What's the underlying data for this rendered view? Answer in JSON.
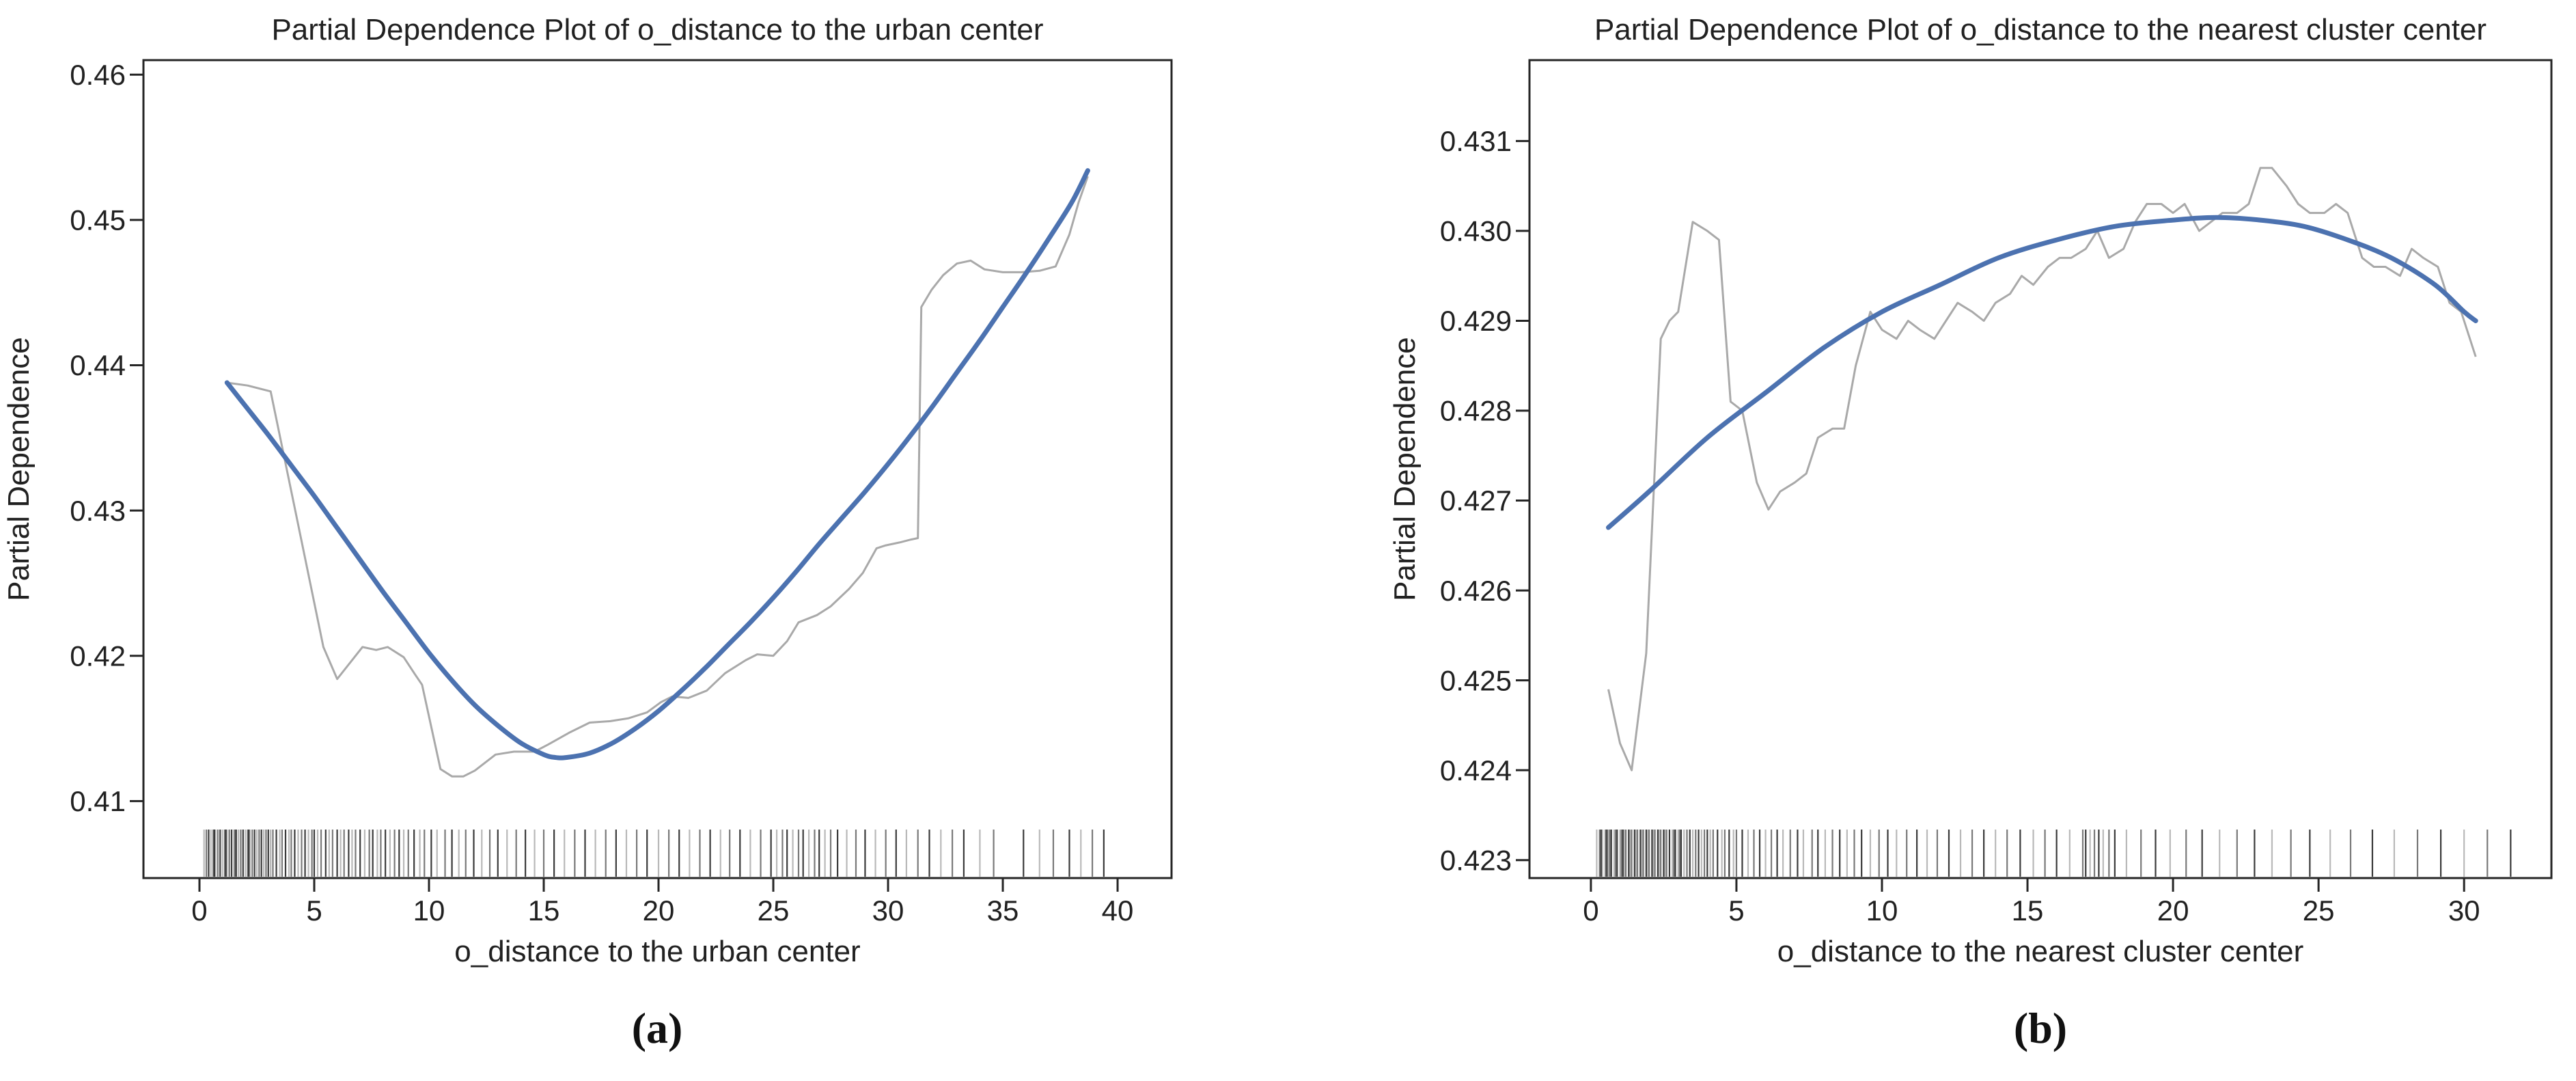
{
  "figure": {
    "background": "#ffffff",
    "captions": [
      "(a)",
      "(b)"
    ]
  },
  "colors": {
    "smooth_line": "#4c72b0",
    "raw_line": "#a9a9a9",
    "axis": "#262626",
    "text": "#212121",
    "rug": "#1a1a1a"
  },
  "chart_data": [
    {
      "type": "line",
      "title": "Partial Dependence Plot of o_distance to the urban center",
      "xlabel": "o_distance to the urban center",
      "ylabel": "Partial Dependence",
      "caption": "(a)",
      "grid": false,
      "legend_position": "none",
      "xlim": [
        -2.44,
        42.35
      ],
      "ylim": [
        0.4047,
        0.461
      ],
      "xticks": [
        0,
        5,
        10,
        15,
        20,
        25,
        30,
        35,
        40
      ],
      "xtick_labels": [
        "0",
        "5",
        "10",
        "15",
        "20",
        "25",
        "30",
        "35",
        "40"
      ],
      "yticks": [
        0.41,
        0.42,
        0.43,
        0.44,
        0.45,
        0.46
      ],
      "ytick_labels": [
        "0.41",
        "0.42",
        "0.43",
        "0.44",
        "0.45",
        "0.46"
      ],
      "series": [
        {
          "name": "partial-dependence-raw",
          "style": "jagged",
          "color": "#a9a9a9",
          "width": 3,
          "points": [
            [
              1.2,
              0.4388
            ],
            [
              2.1,
              0.4386
            ],
            [
              3.1,
              0.4382
            ],
            [
              4.2,
              0.4298
            ],
            [
              5.4,
              0.4206
            ],
            [
              6.0,
              0.4184
            ],
            [
              6.6,
              0.4196
            ],
            [
              7.1,
              0.4206
            ],
            [
              7.7,
              0.4204
            ],
            [
              8.2,
              0.4206
            ],
            [
              8.9,
              0.4199
            ],
            [
              9.4,
              0.4187
            ],
            [
              9.7,
              0.418
            ],
            [
              10.5,
              0.4122
            ],
            [
              11.0,
              0.4117
            ],
            [
              11.5,
              0.4117
            ],
            [
              12.0,
              0.4121
            ],
            [
              12.9,
              0.4132
            ],
            [
              13.7,
              0.4134
            ],
            [
              14.6,
              0.4134
            ],
            [
              15.2,
              0.4139
            ],
            [
              16.1,
              0.4147
            ],
            [
              17.0,
              0.4154
            ],
            [
              17.9,
              0.4155
            ],
            [
              18.7,
              0.4157
            ],
            [
              19.5,
              0.4161
            ],
            [
              20.1,
              0.4168
            ],
            [
              20.6,
              0.4172
            ],
            [
              21.3,
              0.4171
            ],
            [
              22.1,
              0.4176
            ],
            [
              22.9,
              0.4188
            ],
            [
              23.8,
              0.4197
            ],
            [
              24.3,
              0.4201
            ],
            [
              25.0,
              0.42
            ],
            [
              25.6,
              0.421
            ],
            [
              26.1,
              0.4223
            ],
            [
              26.9,
              0.4228
            ],
            [
              27.5,
              0.4234
            ],
            [
              28.3,
              0.4246
            ],
            [
              28.9,
              0.4257
            ],
            [
              29.5,
              0.4274
            ],
            [
              29.9,
              0.4276
            ],
            [
              30.5,
              0.4278
            ],
            [
              31.0,
              0.428
            ],
            [
              31.3,
              0.4281
            ],
            [
              31.45,
              0.444
            ],
            [
              31.9,
              0.4452
            ],
            [
              32.4,
              0.4462
            ],
            [
              33.0,
              0.447
            ],
            [
              33.6,
              0.4472
            ],
            [
              34.2,
              0.4466
            ],
            [
              35.0,
              0.4464
            ],
            [
              35.8,
              0.4464
            ],
            [
              36.6,
              0.4465
            ],
            [
              37.3,
              0.4468
            ],
            [
              37.9,
              0.449
            ],
            [
              38.3,
              0.4512
            ],
            [
              38.7,
              0.453
            ]
          ]
        },
        {
          "name": "partial-dependence-smoothed",
          "style": "smooth",
          "color": "#4c72b0",
          "width": 7,
          "points": [
            [
              1.2,
              0.4388
            ],
            [
              2,
              0.4372
            ],
            [
              3,
              0.4352
            ],
            [
              4,
              0.4331
            ],
            [
              5,
              0.431
            ],
            [
              6,
              0.4288
            ],
            [
              7,
              0.4266
            ],
            [
              8,
              0.4244
            ],
            [
              9,
              0.4223
            ],
            [
              10,
              0.4202
            ],
            [
              11,
              0.4183
            ],
            [
              12,
              0.4166
            ],
            [
              13,
              0.4152
            ],
            [
              14,
              0.414
            ],
            [
              15,
              0.4132
            ],
            [
              15.5,
              0.413
            ],
            [
              16,
              0.413
            ],
            [
              17,
              0.4133
            ],
            [
              18,
              0.414
            ],
            [
              19,
              0.415
            ],
            [
              20,
              0.4162
            ],
            [
              21,
              0.4176
            ],
            [
              22,
              0.4191
            ],
            [
              23,
              0.4207
            ],
            [
              24,
              0.4223
            ],
            [
              25,
              0.424
            ],
            [
              26,
              0.4258
            ],
            [
              27,
              0.4277
            ],
            [
              28,
              0.4295
            ],
            [
              29,
              0.4313
            ],
            [
              30,
              0.4332
            ],
            [
              31,
              0.4352
            ],
            [
              32,
              0.4373
            ],
            [
              33,
              0.4395
            ],
            [
              34,
              0.4417
            ],
            [
              35,
              0.444
            ],
            [
              36,
              0.4463
            ],
            [
              37,
              0.4487
            ],
            [
              38,
              0.4512
            ],
            [
              38.7,
              0.4534
            ]
          ]
        }
      ],
      "rug_x": [
        0.2,
        0.3,
        0.4,
        0.5,
        0.6,
        0.65,
        0.7,
        0.8,
        0.9,
        1.0,
        1.1,
        1.15,
        1.2,
        1.3,
        1.4,
        1.5,
        1.55,
        1.6,
        1.7,
        1.8,
        1.9,
        2.0,
        2.1,
        2.15,
        2.2,
        2.3,
        2.4,
        2.5,
        2.6,
        2.7,
        2.8,
        2.9,
        3.0,
        3.1,
        3.2,
        3.35,
        3.5,
        3.6,
        3.75,
        3.9,
        4.0,
        4.15,
        4.3,
        4.45,
        4.6,
        4.75,
        4.9,
        5.0,
        5.15,
        5.3,
        5.5,
        5.65,
        5.8,
        6.0,
        6.15,
        6.3,
        6.5,
        6.65,
        6.8,
        7.0,
        7.2,
        7.4,
        7.55,
        7.75,
        7.9,
        8.1,
        8.3,
        8.5,
        8.7,
        8.9,
        9.1,
        9.35,
        9.6,
        9.8,
        10.1,
        10.35,
        10.7,
        11.0,
        11.3,
        11.6,
        11.95,
        12.3,
        12.65,
        13.0,
        13.4,
        13.8,
        14.2,
        14.6,
        15.0,
        15.45,
        15.9,
        16.35,
        16.8,
        17.25,
        17.7,
        18.15,
        18.6,
        19.05,
        19.5,
        20.0,
        20.45,
        20.9,
        21.35,
        21.8,
        22.25,
        22.7,
        23.1,
        23.55,
        24.0,
        24.45,
        24.9,
        25.15,
        25.4,
        25.6,
        25.85,
        26.1,
        26.3,
        26.55,
        26.8,
        27.0,
        27.25,
        27.5,
        27.8,
        28.2,
        28.6,
        29.0,
        29.45,
        29.9,
        30.35,
        30.8,
        31.3,
        31.8,
        32.3,
        32.8,
        33.3,
        34.0,
        34.6,
        35.9,
        36.6,
        37.2,
        37.9,
        38.4,
        38.9,
        39.4
      ]
    },
    {
      "type": "line",
      "title": "Partial Dependence Plot of o_distance to the nearest cluster center",
      "xlabel": "o_distance to the nearest cluster center",
      "ylabel": "Partial Dependence",
      "caption": "(b)",
      "grid": false,
      "legend_position": "none",
      "xlim": [
        -2.11,
        33.0
      ],
      "ylim": [
        0.4228,
        0.4319
      ],
      "xticks": [
        0,
        5,
        10,
        15,
        20,
        25,
        30
      ],
      "xtick_labels": [
        "0",
        "5",
        "10",
        "15",
        "20",
        "25",
        "30"
      ],
      "yticks": [
        0.423,
        0.424,
        0.425,
        0.426,
        0.427,
        0.428,
        0.429,
        0.43,
        0.431
      ],
      "ytick_labels": [
        "0.423",
        "0.424",
        "0.425",
        "0.426",
        "0.427",
        "0.428",
        "0.429",
        "0.430",
        "0.431"
      ],
      "series": [
        {
          "name": "partial-dependence-raw",
          "style": "jagged",
          "color": "#a9a9a9",
          "width": 3,
          "points": [
            [
              0.6,
              0.4249
            ],
            [
              1.0,
              0.4243
            ],
            [
              1.4,
              0.424
            ],
            [
              1.9,
              0.4253
            ],
            [
              2.4,
              0.4288
            ],
            [
              2.7,
              0.429
            ],
            [
              3.0,
              0.4291
            ],
            [
              3.5,
              0.4301
            ],
            [
              4.0,
              0.43
            ],
            [
              4.4,
              0.4299
            ],
            [
              4.8,
              0.4281
            ],
            [
              5.2,
              0.428
            ],
            [
              5.7,
              0.4272
            ],
            [
              6.1,
              0.4269
            ],
            [
              6.5,
              0.4271
            ],
            [
              7.0,
              0.4272
            ],
            [
              7.4,
              0.4273
            ],
            [
              7.8,
              0.4277
            ],
            [
              8.3,
              0.4278
            ],
            [
              8.7,
              0.4278
            ],
            [
              9.1,
              0.4285
            ],
            [
              9.6,
              0.4291
            ],
            [
              10.0,
              0.4289
            ],
            [
              10.5,
              0.4288
            ],
            [
              10.9,
              0.429
            ],
            [
              11.3,
              0.4289
            ],
            [
              11.8,
              0.4288
            ],
            [
              12.2,
              0.429
            ],
            [
              12.6,
              0.4292
            ],
            [
              13.1,
              0.4291
            ],
            [
              13.5,
              0.429
            ],
            [
              13.9,
              0.4292
            ],
            [
              14.4,
              0.4293
            ],
            [
              14.8,
              0.4295
            ],
            [
              15.2,
              0.4294
            ],
            [
              15.7,
              0.4296
            ],
            [
              16.1,
              0.4297
            ],
            [
              16.5,
              0.4297
            ],
            [
              17.0,
              0.4298
            ],
            [
              17.4,
              0.43
            ],
            [
              17.8,
              0.4297
            ],
            [
              18.3,
              0.4298
            ],
            [
              18.7,
              0.4301
            ],
            [
              19.1,
              0.4303
            ],
            [
              19.6,
              0.4303
            ],
            [
              20.0,
              0.4302
            ],
            [
              20.4,
              0.4303
            ],
            [
              20.9,
              0.43
            ],
            [
              21.3,
              0.4301
            ],
            [
              21.7,
              0.4302
            ],
            [
              22.2,
              0.4302
            ],
            [
              22.6,
              0.4303
            ],
            [
              23.0,
              0.4307
            ],
            [
              23.4,
              0.4307
            ],
            [
              23.9,
              0.4305
            ],
            [
              24.3,
              0.4303
            ],
            [
              24.7,
              0.4302
            ],
            [
              25.2,
              0.4302
            ],
            [
              25.6,
              0.4303
            ],
            [
              26.0,
              0.4302
            ],
            [
              26.5,
              0.4297
            ],
            [
              26.9,
              0.4296
            ],
            [
              27.3,
              0.4296
            ],
            [
              27.8,
              0.4295
            ],
            [
              28.2,
              0.4298
            ],
            [
              28.6,
              0.4297
            ],
            [
              29.1,
              0.4296
            ],
            [
              29.5,
              0.4292
            ],
            [
              29.9,
              0.4291
            ],
            [
              30.4,
              0.4286
            ]
          ]
        },
        {
          "name": "partial-dependence-smoothed",
          "style": "smooth",
          "color": "#4c72b0",
          "width": 7,
          "points": [
            [
              0.6,
              0.4267
            ],
            [
              2,
              0.4271
            ],
            [
              4,
              0.4277
            ],
            [
              6,
              0.4282
            ],
            [
              8,
              0.4287
            ],
            [
              10,
              0.4291
            ],
            [
              12,
              0.4294
            ],
            [
              14,
              0.4297
            ],
            [
              16,
              0.4299
            ],
            [
              18,
              0.43005
            ],
            [
              20,
              0.43012
            ],
            [
              21.5,
              0.43015
            ],
            [
              23,
              0.43012
            ],
            [
              24.5,
              0.43005
            ],
            [
              26,
              0.4299
            ],
            [
              27.5,
              0.4297
            ],
            [
              29,
              0.4294
            ],
            [
              30,
              0.4291
            ],
            [
              30.4,
              0.429
            ]
          ]
        }
      ],
      "rug_x": [
        0.2,
        0.3,
        0.35,
        0.4,
        0.5,
        0.55,
        0.6,
        0.65,
        0.7,
        0.8,
        0.85,
        0.9,
        1.0,
        1.05,
        1.1,
        1.15,
        1.2,
        1.3,
        1.35,
        1.4,
        1.5,
        1.55,
        1.6,
        1.7,
        1.75,
        1.8,
        1.9,
        1.95,
        2.0,
        2.1,
        2.15,
        2.2,
        2.3,
        2.35,
        2.4,
        2.5,
        2.55,
        2.6,
        2.7,
        2.8,
        2.85,
        2.9,
        3.0,
        3.05,
        3.1,
        3.2,
        3.3,
        3.4,
        3.5,
        3.6,
        3.7,
        3.8,
        3.9,
        4.0,
        4.1,
        4.2,
        4.35,
        4.5,
        4.6,
        4.75,
        4.9,
        5.0,
        5.2,
        5.4,
        5.6,
        5.8,
        6.0,
        6.2,
        6.4,
        6.6,
        6.85,
        7.1,
        7.3,
        7.6,
        7.8,
        8.05,
        8.3,
        8.55,
        8.8,
        9.05,
        9.3,
        9.6,
        9.9,
        10.2,
        10.5,
        10.85,
        11.2,
        11.55,
        11.9,
        12.3,
        12.7,
        13.1,
        13.5,
        13.9,
        14.3,
        14.75,
        15.2,
        15.6,
        16.0,
        16.45,
        16.9,
        17.0,
        17.15,
        17.3,
        17.45,
        17.6,
        17.8,
        18.0,
        18.4,
        18.9,
        19.4,
        19.9,
        20.45,
        21.0,
        21.6,
        22.2,
        22.8,
        23.4,
        24.05,
        24.7,
        25.4,
        26.1,
        26.85,
        27.6,
        28.4,
        29.2,
        30.0,
        30.8,
        31.6
      ]
    }
  ]
}
